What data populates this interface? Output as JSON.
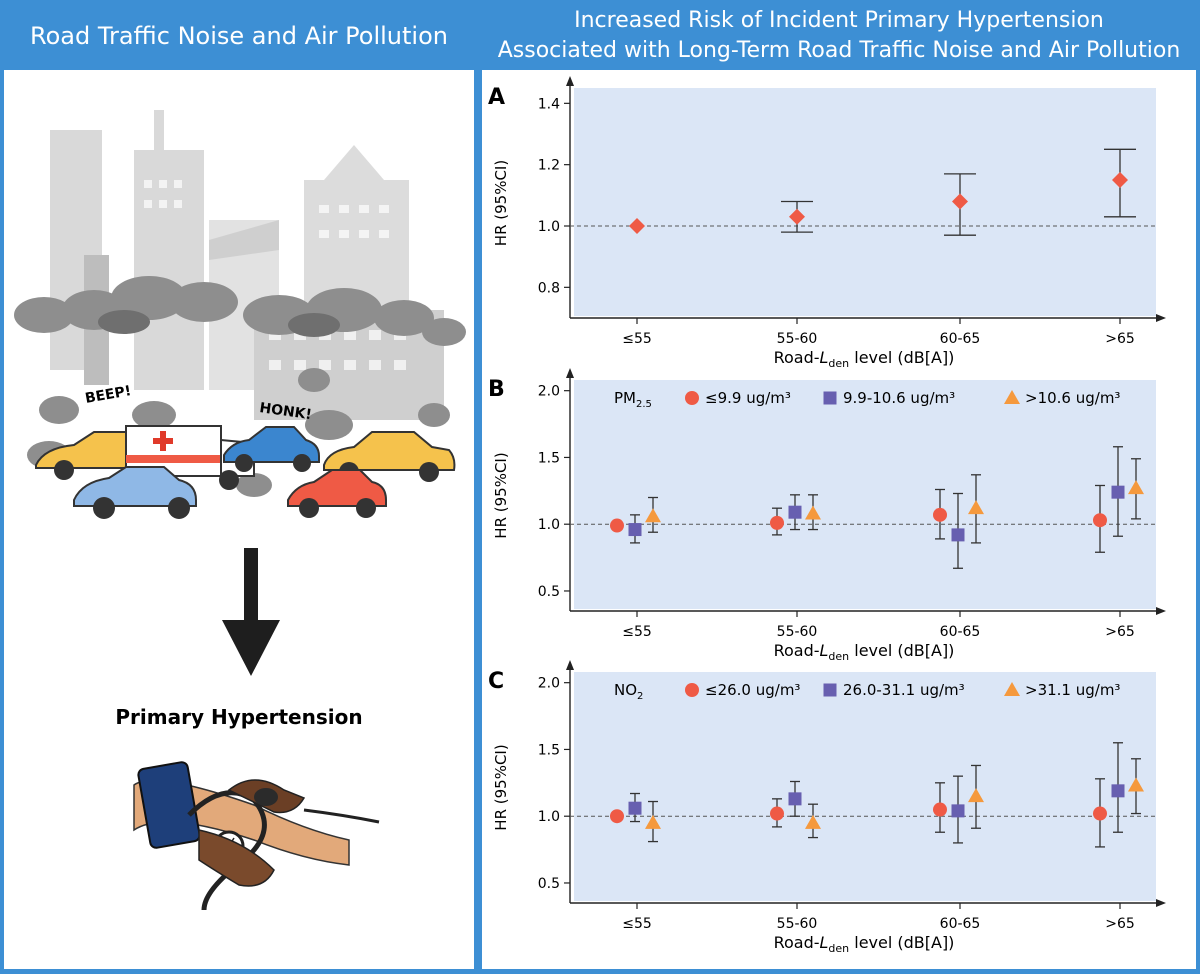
{
  "left_panel": {
    "title": "Road Traffic Noise and Air Pollution",
    "sound_words": [
      "BEEP!",
      "HONK!"
    ],
    "outcome_label": "Primary Hypertension",
    "icons": [
      "city-buildings-icon",
      "smog-cloud-icon",
      "taxi-icon",
      "ambulance-icon",
      "car-icon",
      "down-arrow-icon",
      "blood-pressure-cuff-icon"
    ]
  },
  "right_panel": {
    "title_line1": "Increased Risk of Incident Primary Hypertension",
    "title_line2": "Associated with Long-Term Road Traffic Noise and Air Pollution"
  },
  "colors": {
    "header_blue": "#3d8fd4",
    "plot_background": "#dbe6f6",
    "red": "#ef5a45",
    "purple": "#675fb0",
    "orange": "#f5993d"
  },
  "chart_data": [
    {
      "panel_letter": "A",
      "type": "scatter",
      "categories": [
        "≤55",
        "55-60",
        "60-65",
        ">65"
      ],
      "xlabel": {
        "main": "Road-",
        "italic": "L",
        "sub": "den",
        "rest": " level (dB[A])"
      },
      "ylabel": "HR (95%CI)",
      "ylim": [
        0.7,
        1.45
      ],
      "yticks": [
        0.8,
        1.0,
        1.2,
        1.4
      ],
      "yticklabels": [
        "0.8",
        "1.0",
        "1.2",
        "1.4"
      ],
      "reference_line": 1.0,
      "legend": null,
      "series": [
        {
          "marker": "diamond",
          "color": "#ef5a45",
          "values": [
            1.0,
            1.03,
            1.08,
            1.15
          ],
          "lower": [
            null,
            0.98,
            0.97,
            1.03
          ],
          "upper": [
            null,
            1.08,
            1.17,
            1.25
          ]
        }
      ]
    },
    {
      "panel_letter": "B",
      "type": "scatter",
      "categories": [
        "≤55",
        "55-60",
        "60-65",
        ">65"
      ],
      "xlabel": {
        "main": "Road-",
        "italic": "L",
        "sub": "den",
        "rest": " level (dB[A])"
      },
      "ylabel": "HR (95%CI)",
      "ylim": [
        0.35,
        2.08
      ],
      "yticks": [
        0.5,
        1.0,
        1.5,
        2.0
      ],
      "yticklabels": [
        "0.5",
        "1.0",
        "1.5",
        "2.0"
      ],
      "reference_line": 1.0,
      "legend": {
        "pollutant_main": "PM",
        "pollutant_sub": "2.5",
        "position": "top"
      },
      "series": [
        {
          "name": "≤9.9 ug/m³",
          "marker": "circle",
          "color": "#ef5a45",
          "values": [
            0.99,
            1.01,
            1.07,
            1.03
          ],
          "lower": [
            null,
            0.92,
            0.89,
            0.79
          ],
          "upper": [
            null,
            1.12,
            1.26,
            1.29
          ]
        },
        {
          "name": "9.9-10.6 ug/m³",
          "marker": "square",
          "color": "#675fb0",
          "values": [
            0.96,
            1.09,
            0.92,
            1.24
          ],
          "lower": [
            0.86,
            0.96,
            0.67,
            0.91
          ],
          "upper": [
            1.07,
            1.22,
            1.23,
            1.58
          ]
        },
        {
          "name": ">10.6 ug/m³",
          "marker": "triangle",
          "color": "#f5993d",
          "values": [
            1.06,
            1.08,
            1.12,
            1.27
          ],
          "lower": [
            0.94,
            0.96,
            0.86,
            1.04
          ],
          "upper": [
            1.2,
            1.22,
            1.37,
            1.49
          ]
        }
      ]
    },
    {
      "panel_letter": "C",
      "type": "scatter",
      "categories": [
        "≤55",
        "55-60",
        "60-65",
        ">65"
      ],
      "xlabel": {
        "main": "Road-",
        "italic": "L",
        "sub": "den",
        "rest": " level (dB[A])"
      },
      "ylabel": "HR (95%CI)",
      "ylim": [
        0.35,
        2.08
      ],
      "yticks": [
        0.5,
        1.0,
        1.5,
        2.0
      ],
      "yticklabels": [
        "0.5",
        "1.0",
        "1.5",
        "2.0"
      ],
      "reference_line": 1.0,
      "legend": {
        "pollutant_main": "NO",
        "pollutant_sub": "2",
        "position": "top"
      },
      "series": [
        {
          "name": "≤26.0 ug/m³",
          "marker": "circle",
          "color": "#ef5a45",
          "values": [
            1.0,
            1.02,
            1.05,
            1.02
          ],
          "lower": [
            null,
            0.92,
            0.88,
            0.77
          ],
          "upper": [
            null,
            1.13,
            1.25,
            1.28
          ]
        },
        {
          "name": "26.0-31.1 ug/m³",
          "marker": "square",
          "color": "#675fb0",
          "values": [
            1.06,
            1.13,
            1.04,
            1.19
          ],
          "lower": [
            0.96,
            1.0,
            0.8,
            0.88
          ],
          "upper": [
            1.17,
            1.26,
            1.3,
            1.55
          ]
        },
        {
          "name": ">31.1 ug/m³",
          "marker": "triangle",
          "color": "#f5993d",
          "values": [
            0.95,
            0.95,
            1.15,
            1.23
          ],
          "lower": [
            0.81,
            0.84,
            0.91,
            1.02
          ],
          "upper": [
            1.11,
            1.09,
            1.38,
            1.43
          ]
        }
      ]
    }
  ]
}
